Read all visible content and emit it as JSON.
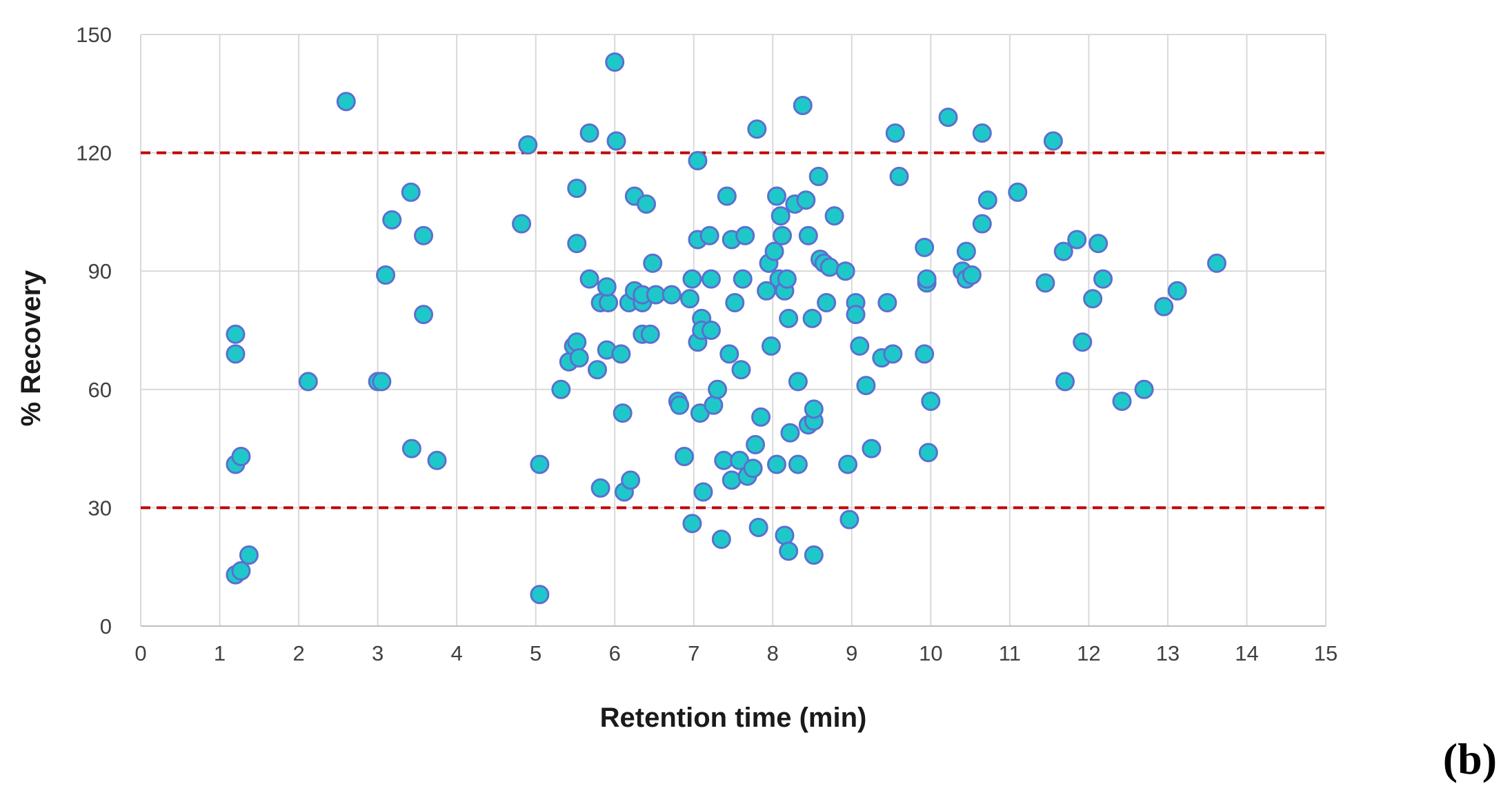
{
  "chart_data": {
    "type": "scatter",
    "title": "",
    "xlabel": "Retention time (min)",
    "ylabel": "% Recovery",
    "xlim": [
      0,
      15
    ],
    "ylim": [
      0,
      150
    ],
    "x_ticks": [
      "0",
      "1",
      "2",
      "3",
      "4",
      "5",
      "6",
      "7",
      "8",
      "9",
      "10",
      "11",
      "12",
      "13",
      "14",
      "15"
    ],
    "y_ticks": [
      "0",
      "30",
      "60",
      "90",
      "120",
      "150"
    ],
    "grid": "on",
    "legend": "none",
    "marker_fill": "#1fc8c8",
    "marker_edge": "#5b6fd0",
    "reference_lines": [
      {
        "y": 120,
        "color": "#c00000",
        "style": "dashed"
      },
      {
        "y": 30,
        "color": "#c00000",
        "style": "dashed"
      }
    ],
    "points": [
      [
        1.2,
        74
      ],
      [
        1.2,
        69
      ],
      [
        1.2,
        41
      ],
      [
        1.27,
        43
      ],
      [
        1.2,
        13
      ],
      [
        1.27,
        14
      ],
      [
        1.37,
        18
      ],
      [
        2.12,
        62
      ],
      [
        2.6,
        133
      ],
      [
        3.0,
        62
      ],
      [
        3.05,
        62
      ],
      [
        3.1,
        89
      ],
      [
        3.18,
        103
      ],
      [
        3.42,
        110
      ],
      [
        3.43,
        45
      ],
      [
        3.58,
        99
      ],
      [
        3.58,
        79
      ],
      [
        3.75,
        42
      ],
      [
        4.82,
        102
      ],
      [
        4.9,
        122
      ],
      [
        5.05,
        41
      ],
      [
        5.05,
        8
      ],
      [
        5.32,
        60
      ],
      [
        5.42,
        67
      ],
      [
        5.48,
        71
      ],
      [
        5.52,
        72
      ],
      [
        5.55,
        68
      ],
      [
        5.52,
        97
      ],
      [
        5.52,
        111
      ],
      [
        5.68,
        88
      ],
      [
        5.68,
        125
      ],
      [
        5.78,
        65
      ],
      [
        5.82,
        82
      ],
      [
        5.82,
        35
      ],
      [
        5.9,
        70
      ],
      [
        5.92,
        82
      ],
      [
        5.9,
        86
      ],
      [
        6.0,
        143
      ],
      [
        6.02,
        123
      ],
      [
        6.08,
        69
      ],
      [
        6.1,
        54
      ],
      [
        6.12,
        34
      ],
      [
        6.18,
        82
      ],
      [
        6.2,
        37
      ],
      [
        6.25,
        109
      ],
      [
        6.25,
        85
      ],
      [
        6.35,
        82
      ],
      [
        6.35,
        84
      ],
      [
        6.35,
        74
      ],
      [
        6.4,
        107
      ],
      [
        6.45,
        74
      ],
      [
        6.48,
        92
      ],
      [
        6.52,
        84
      ],
      [
        6.72,
        84
      ],
      [
        6.8,
        57
      ],
      [
        6.82,
        56
      ],
      [
        6.88,
        43
      ],
      [
        6.95,
        83
      ],
      [
        6.98,
        88
      ],
      [
        6.98,
        26
      ],
      [
        7.05,
        98
      ],
      [
        7.05,
        118
      ],
      [
        7.05,
        72
      ],
      [
        7.1,
        78
      ],
      [
        7.08,
        54
      ],
      [
        7.1,
        75
      ],
      [
        7.12,
        34
      ],
      [
        7.2,
        99
      ],
      [
        7.22,
        88
      ],
      [
        7.22,
        75
      ],
      [
        7.25,
        56
      ],
      [
        7.3,
        60
      ],
      [
        7.35,
        22
      ],
      [
        7.38,
        42
      ],
      [
        7.42,
        109
      ],
      [
        7.45,
        69
      ],
      [
        7.48,
        98
      ],
      [
        7.48,
        37
      ],
      [
        7.52,
        82
      ],
      [
        7.58,
        42
      ],
      [
        7.6,
        65
      ],
      [
        7.62,
        88
      ],
      [
        7.65,
        99
      ],
      [
        7.68,
        38
      ],
      [
        7.75,
        40
      ],
      [
        7.78,
        46
      ],
      [
        7.8,
        126
      ],
      [
        7.82,
        25
      ],
      [
        7.85,
        53
      ],
      [
        7.92,
        85
      ],
      [
        7.95,
        92
      ],
      [
        7.98,
        71
      ],
      [
        8.02,
        95
      ],
      [
        8.05,
        109
      ],
      [
        8.05,
        41
      ],
      [
        8.08,
        88
      ],
      [
        8.1,
        104
      ],
      [
        8.12,
        99
      ],
      [
        8.15,
        23
      ],
      [
        8.15,
        85
      ],
      [
        8.18,
        88
      ],
      [
        8.2,
        19
      ],
      [
        8.2,
        78
      ],
      [
        8.22,
        49
      ],
      [
        8.28,
        107
      ],
      [
        8.32,
        62
      ],
      [
        8.32,
        41
      ],
      [
        8.38,
        132
      ],
      [
        8.42,
        108
      ],
      [
        8.45,
        99
      ],
      [
        8.45,
        51
      ],
      [
        8.5,
        78
      ],
      [
        8.52,
        52
      ],
      [
        8.52,
        55
      ],
      [
        8.52,
        18
      ],
      [
        8.58,
        114
      ],
      [
        8.6,
        93
      ],
      [
        8.65,
        92
      ],
      [
        8.68,
        82
      ],
      [
        8.72,
        91
      ],
      [
        8.78,
        104
      ],
      [
        8.92,
        90
      ],
      [
        8.95,
        41
      ],
      [
        8.97,
        27
      ],
      [
        9.05,
        82
      ],
      [
        9.05,
        79
      ],
      [
        9.1,
        71
      ],
      [
        9.18,
        61
      ],
      [
        9.25,
        45
      ],
      [
        9.38,
        68
      ],
      [
        9.45,
        82
      ],
      [
        9.52,
        69
      ],
      [
        9.55,
        125
      ],
      [
        9.6,
        114
      ],
      [
        9.92,
        96
      ],
      [
        9.92,
        69
      ],
      [
        9.95,
        87
      ],
      [
        9.95,
        88
      ],
      [
        9.97,
        44
      ],
      [
        10.0,
        57
      ],
      [
        10.22,
        129
      ],
      [
        10.4,
        90
      ],
      [
        10.45,
        95
      ],
      [
        10.45,
        88
      ],
      [
        10.52,
        89
      ],
      [
        10.65,
        125
      ],
      [
        10.65,
        102
      ],
      [
        10.72,
        108
      ],
      [
        11.1,
        110
      ],
      [
        11.45,
        87
      ],
      [
        11.55,
        123
      ],
      [
        11.68,
        95
      ],
      [
        11.7,
        62
      ],
      [
        11.85,
        98
      ],
      [
        11.92,
        72
      ],
      [
        12.05,
        83
      ],
      [
        12.12,
        97
      ],
      [
        12.18,
        88
      ],
      [
        12.42,
        57
      ],
      [
        12.7,
        60
      ],
      [
        12.95,
        81
      ],
      [
        13.12,
        85
      ],
      [
        13.62,
        92
      ]
    ],
    "panel_label": "(b)"
  }
}
